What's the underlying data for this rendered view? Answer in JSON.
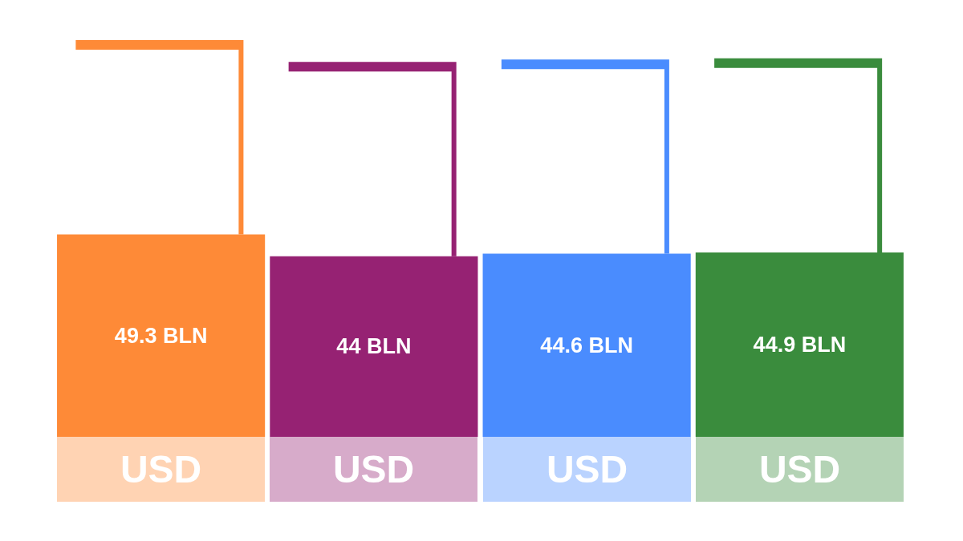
{
  "chart_data": {
    "type": "bar",
    "categories": [
      null,
      null,
      null,
      null
    ],
    "values": [
      49.3,
      44,
      44.6,
      44.9
    ],
    "value_labels": [
      "49.3 BLN",
      "44 BLN",
      "44.6 BLN",
      "44.9 BLN"
    ],
    "colors": [
      "#fe8a37",
      "#962273",
      "#4a8cfe",
      "#3a8c3d"
    ],
    "annotations": [
      "USD",
      "USD",
      "USD",
      "USD"
    ],
    "tick_labels": false
  }
}
